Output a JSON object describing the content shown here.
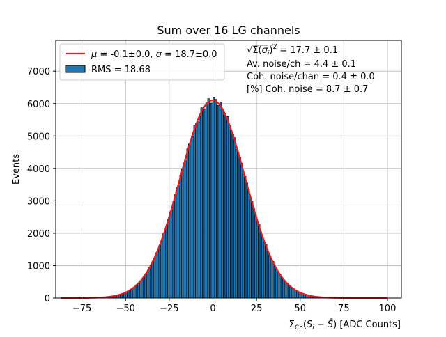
{
  "chart_data": {
    "type": "bar",
    "title": "Sum over 16 LG channels",
    "xlabel": "Σ_Ch(S_i − S̄) [ADC Counts]",
    "ylabel": "Events",
    "xlim": [
      -90,
      108
    ],
    "ylim": [
      0,
      7950
    ],
    "xticks": [
      -75,
      -50,
      -25,
      0,
      25,
      50,
      75,
      100
    ],
    "yticks": [
      0,
      1000,
      2000,
      3000,
      4000,
      5000,
      6000,
      7000
    ],
    "grid": true,
    "legend_position": "top-left",
    "histogram": {
      "name": "RMS = 18.68",
      "color": "#1f77b4",
      "edge_color": "#000000",
      "bin_width": 1,
      "range": [
        -85,
        100
      ],
      "peak_events": 6050,
      "peak_x": -1,
      "rms": 18.68
    },
    "fit": {
      "name": "μ = -0.1±0.0, σ = 18.7±0.0",
      "color": "#e41a1c",
      "mu": -0.1,
      "sigma": 18.7,
      "amplitude": 6100
    },
    "annotations": [
      "√Σ(σ_i)² = 17.7 ± 0.1",
      "Av. noise/ch = 4.4 ± 0.1",
      "Coh. noise/chan = 0.4 ± 0.0",
      "[%] Coh. noise = 8.7 ± 0.7"
    ]
  }
}
